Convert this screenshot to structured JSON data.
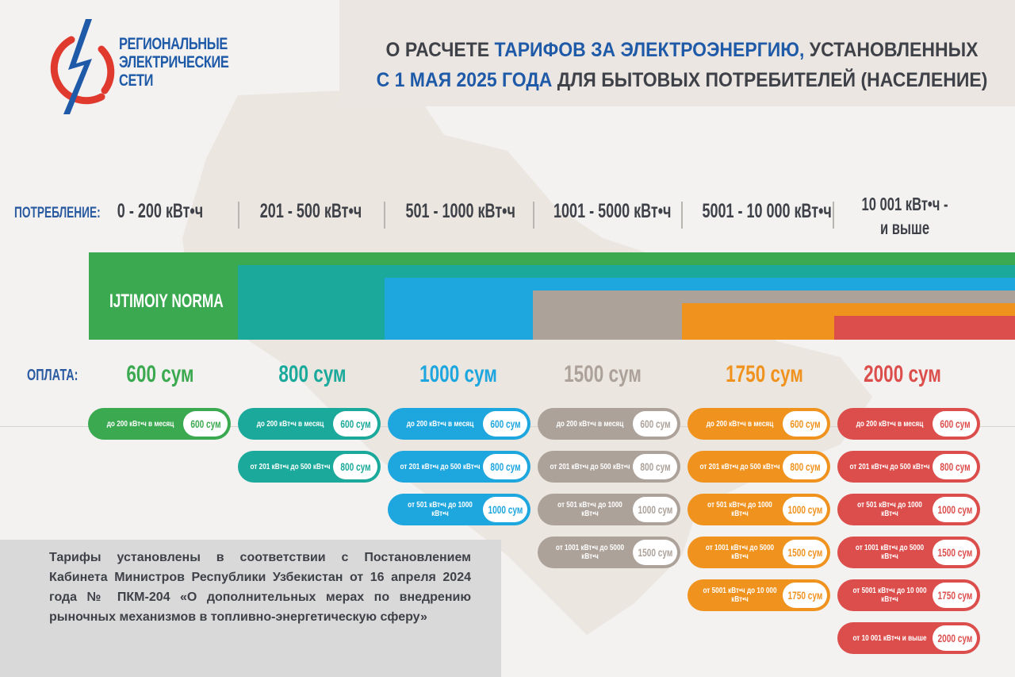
{
  "logo": {
    "lines": [
      "РЕГИОНАЛЬНЫЕ",
      "ЭЛЕКТРИЧЕСКИЕ",
      "СЕТИ"
    ],
    "icon": "lightning-circle-icon"
  },
  "title": {
    "part1": "О РАСЧЕТЕ ",
    "part2_highlight": "ТАРИФОВ ЗА ЭЛЕКТРОЭНЕРГИЮ,",
    "part3": " УСТАНОВЛЕННЫХ",
    "part4_highlight": "С 1 МАЯ 2025 ГОДА",
    "part5": " ДЛЯ БЫТОВЫХ ПОТРЕБИТЕЛЕЙ (НАСЕЛЕНИЕ)"
  },
  "consumption": {
    "label": "ПОТРЕБЛЕНИЕ:",
    "ranges": [
      "0 - 200 кВт•ч",
      "201 - 500 кВт•ч",
      "501 - 1000 кВт•ч",
      "1001 - 5000 кВт•ч",
      "5001 - 10 000 кВт•ч",
      "10 001 кВт•ч - и выше"
    ]
  },
  "norma_label": "IJTIMOIY NORMA",
  "payment": {
    "label": "ОПЛАТА:",
    "prices": [
      "600 сум",
      "800 сум",
      "1000 сум",
      "1500 сум",
      "1750 сум",
      "2000 сум"
    ]
  },
  "colors": {
    "green": "#3aa94f",
    "teal": "#1aa99a",
    "blue": "#1ea6de",
    "gray": "#aca29a",
    "orange": "#f0921e",
    "red": "#dc4e4c",
    "accent_blue": "#1e5aa8",
    "logo_red": "#e03a2f"
  },
  "columns": [
    {
      "pills": [
        {
          "text": "до 200 кВт•ч в месяц",
          "value": "600 сум"
        }
      ]
    },
    {
      "pills": [
        {
          "text": "до 200 кВт•ч в месяц",
          "value": "600 сум"
        },
        {
          "text": "от 201 кВт•ч до 500 кВт•ч",
          "value": "800 сум"
        }
      ]
    },
    {
      "pills": [
        {
          "text": "до 200 кВт•ч в месяц",
          "value": "600 сум"
        },
        {
          "text": "от 201 кВт•ч до 500 кВт•ч",
          "value": "800 сум"
        },
        {
          "text": "от 501 кВт•ч до 1000 кВт•ч",
          "value": "1000 сум"
        }
      ]
    },
    {
      "pills": [
        {
          "text": "до 200 кВт•ч в месяц",
          "value": "600 сум"
        },
        {
          "text": "от 201 кВт•ч до 500 кВт•ч",
          "value": "800 сум"
        },
        {
          "text": "от 501 кВт•ч до 1000 кВт•ч",
          "value": "1000 сум"
        },
        {
          "text": "от 1001 кВт•ч до 5000 кВт•ч",
          "value": "1500 сум"
        }
      ]
    },
    {
      "pills": [
        {
          "text": "до 200 кВт•ч в месяц",
          "value": "600 сум"
        },
        {
          "text": "от 201 кВт•ч до 500 кВт•ч",
          "value": "800 сум"
        },
        {
          "text": "от 501 кВт•ч до 1000 кВт•ч",
          "value": "1000 сум"
        },
        {
          "text": "от 1001 кВт•ч до 5000 кВт•ч",
          "value": "1500 сум"
        },
        {
          "text": "от 5001 кВт•ч до 10 000 кВт•ч",
          "value": "1750 сум"
        }
      ]
    },
    {
      "pills": [
        {
          "text": "до 200 кВт•ч в месяц",
          "value": "600 сум"
        },
        {
          "text": "от 201 кВт•ч до 500 кВт•ч",
          "value": "800 сум"
        },
        {
          "text": "от 501 кВт•ч до 1000 кВт•ч",
          "value": "1000 сум"
        },
        {
          "text": "от 1001 кВт•ч до 5000 кВт•ч",
          "value": "1500 сум"
        },
        {
          "text": "от 5001 кВт•ч до 10 000 кВт•ч",
          "value": "1750 сум"
        },
        {
          "text": "от 10 001 кВт•ч и выше",
          "value": "2000 сум"
        }
      ]
    }
  ],
  "note": "Тарифы установлены в соответствии с Постановлением Кабинета Министров Республики Узбекистан от 16 апреля 2024 года № ПКМ-204 «О дополнительных мерах по внедрению рыночных механизмов в топливно-энергетическую сферу»"
}
